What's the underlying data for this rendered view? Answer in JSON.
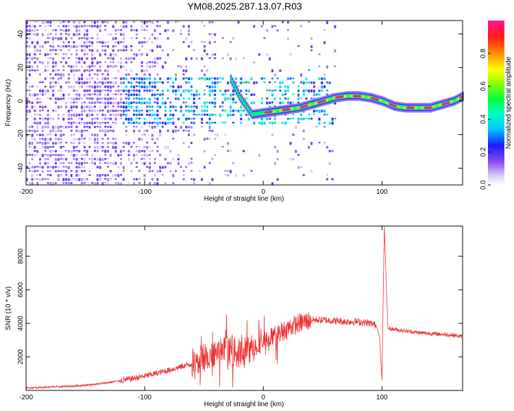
{
  "title": "YM08.2025.287.13.07.R03",
  "chart_data": [
    {
      "type": "heatmap",
      "xlabel": "Height of straight line (km)",
      "ylabel": "Frequency (Hz)",
      "xlim": [
        -200,
        168
      ],
      "ylim": [
        -50,
        48
      ],
      "xticks": [
        -200,
        -100,
        0,
        100
      ],
      "yticks": [
        -40,
        -20,
        0,
        20,
        40
      ],
      "colorbar": {
        "label": "Normalized spectral amplitude",
        "range": [
          0,
          1
        ],
        "ticks": [
          0.0,
          0.2,
          0.4,
          0.6,
          0.8
        ]
      },
      "ridge": {
        "x": [
          -28,
          -20,
          -10,
          0,
          10,
          20,
          30,
          40,
          50,
          60,
          70,
          80,
          90,
          100,
          110,
          120,
          130,
          140,
          150,
          160,
          168
        ],
        "y": [
          13,
          2,
          -8,
          -7,
          -6,
          -5,
          -4,
          -2,
          0,
          2,
          3,
          3,
          2,
          0,
          -3,
          -4,
          -4,
          -4,
          -2,
          0,
          3
        ]
      },
      "ridge_amplitude_min": 0.55,
      "ridge_amplitude_max": 1.0
    },
    {
      "type": "line",
      "xlabel": "Height of straight line (km)",
      "ylabel": "SNR (10 * v/v)",
      "xlim": [
        -200,
        168
      ],
      "ylim": [
        0,
        9800
      ],
      "xticks": [
        -200,
        -100,
        0,
        100
      ],
      "yticks": [
        2000,
        4000,
        6000,
        8000
      ],
      "series": [
        {
          "name": "SNR",
          "color": "#ee3030",
          "x": [
            -200,
            -180,
            -160,
            -140,
            -120,
            -100,
            -80,
            -60,
            -40,
            -30,
            -20,
            -10,
            0,
            10,
            20,
            30,
            40,
            50,
            60,
            70,
            80,
            90,
            95,
            98,
            100,
            102,
            105,
            110,
            120,
            130,
            140,
            150,
            160,
            168
          ],
          "y": [
            150,
            200,
            260,
            380,
            580,
            850,
            1200,
            1600,
            2200,
            2400,
            2200,
            2500,
            2900,
            3300,
            3700,
            4000,
            4200,
            4200,
            4150,
            4100,
            4100,
            4000,
            3900,
            3200,
            600,
            9800,
            3700,
            3650,
            3550,
            3450,
            3400,
            3350,
            3300,
            3200
          ]
        }
      ]
    }
  ]
}
